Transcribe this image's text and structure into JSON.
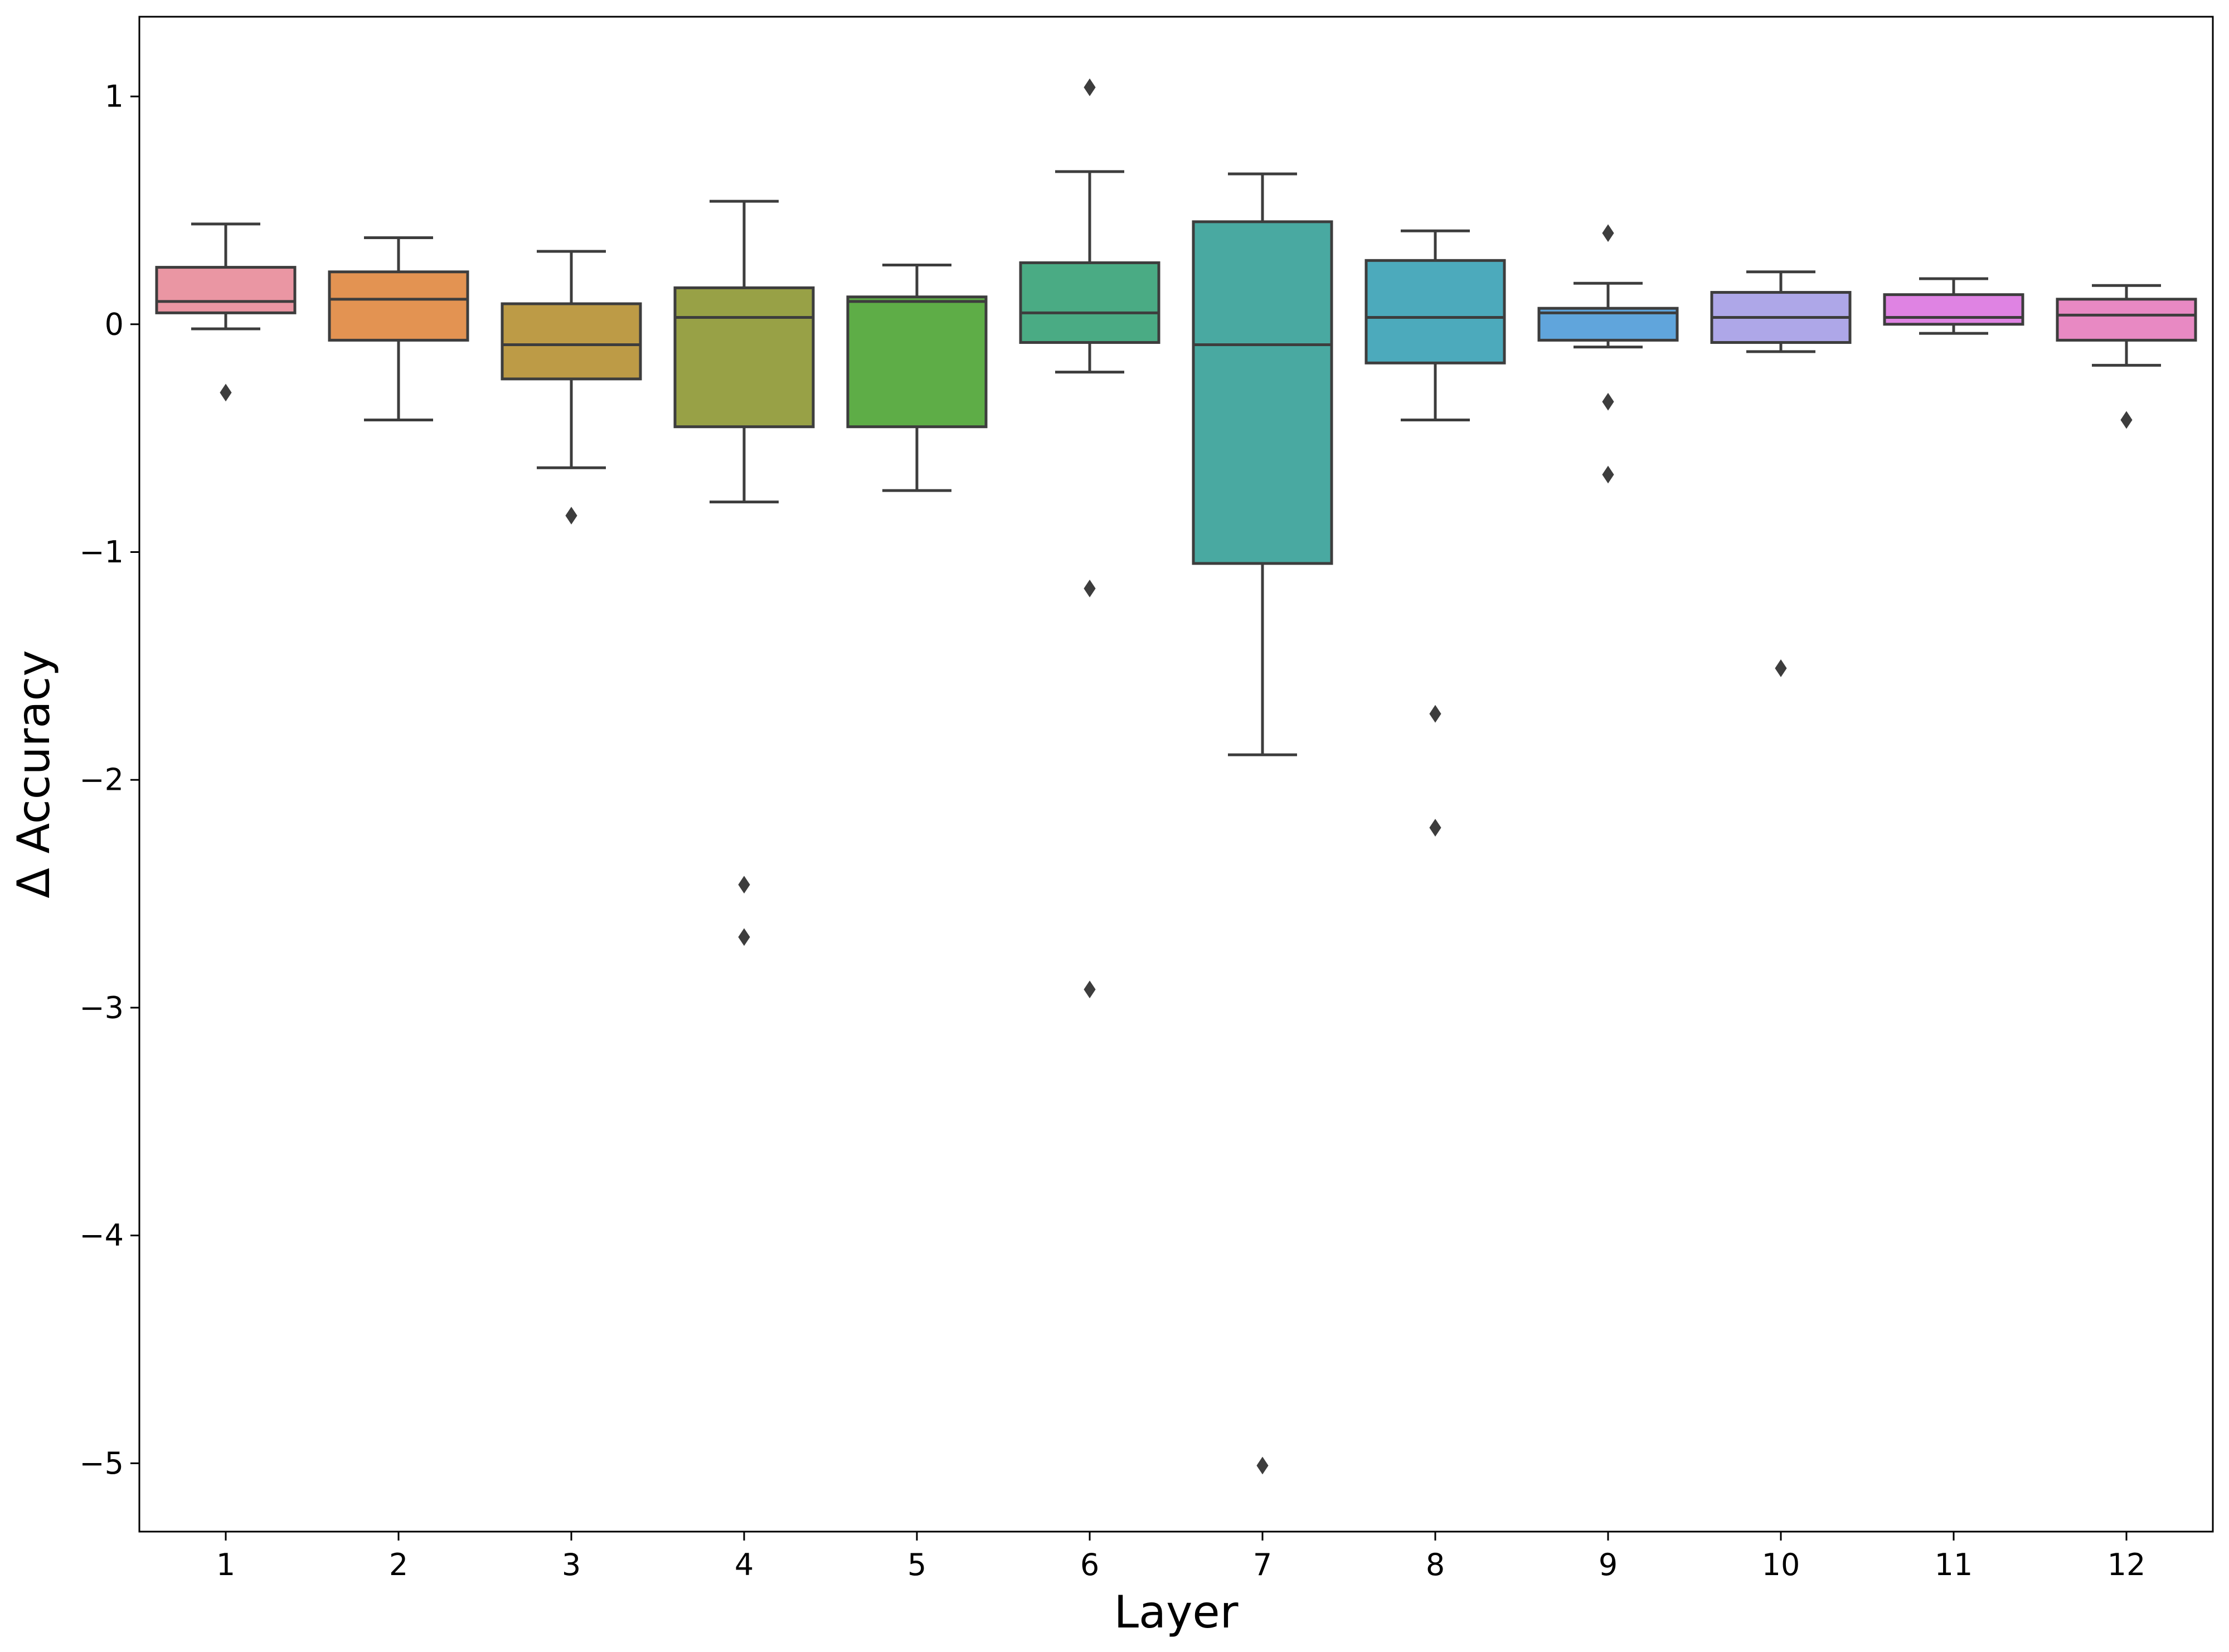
{
  "chart_data": {
    "type": "box",
    "title": "",
    "xlabel": "Layer",
    "ylabel": "Δ Accuracy",
    "ylim": [
      -5.3,
      1.35
    ],
    "yticks": [
      1,
      0,
      -1,
      -2,
      -3,
      -4,
      -5
    ],
    "ytick_labels": [
      "1",
      "0",
      "−1",
      "−2",
      "−3",
      "−4",
      "−5"
    ],
    "grid": false,
    "legend": "none",
    "categories": [
      "1",
      "2",
      "3",
      "4",
      "5",
      "6",
      "7",
      "8",
      "9",
      "10",
      "11",
      "12"
    ],
    "boxes": [
      {
        "label": "1",
        "color": "#ea96a3",
        "whisker_low": -0.02,
        "q1": 0.05,
        "median": 0.1,
        "q3": 0.25,
        "whisker_high": 0.44,
        "outliers": [
          -0.3
        ]
      },
      {
        "label": "2",
        "color": "#e39352",
        "whisker_low": -0.42,
        "q1": -0.07,
        "median": 0.11,
        "q3": 0.23,
        "whisker_high": 0.38,
        "outliers": []
      },
      {
        "label": "3",
        "color": "#bd9b46",
        "whisker_low": -0.63,
        "q1": -0.24,
        "median": -0.09,
        "q3": 0.09,
        "whisker_high": 0.32,
        "outliers": [
          -0.84
        ]
      },
      {
        "label": "4",
        "color": "#98a146",
        "whisker_low": -0.78,
        "q1": -0.45,
        "median": 0.03,
        "q3": 0.16,
        "whisker_high": 0.54,
        "outliers": [
          -2.46,
          -2.69
        ]
      },
      {
        "label": "5",
        "color": "#5ead47",
        "whisker_low": -0.73,
        "q1": -0.45,
        "median": 0.1,
        "q3": 0.12,
        "whisker_high": 0.26,
        "outliers": []
      },
      {
        "label": "6",
        "color": "#4aab84",
        "whisker_low": -0.21,
        "q1": -0.08,
        "median": 0.05,
        "q3": 0.27,
        "whisker_high": 0.67,
        "outliers": [
          1.04,
          -1.16,
          -2.92
        ]
      },
      {
        "label": "7",
        "color": "#49a9a1",
        "whisker_low": -1.89,
        "q1": -1.05,
        "median": -0.09,
        "q3": 0.45,
        "whisker_high": 0.66,
        "outliers": [
          -5.01
        ]
      },
      {
        "label": "8",
        "color": "#4caabc",
        "whisker_low": -0.42,
        "q1": -0.17,
        "median": 0.03,
        "q3": 0.28,
        "whisker_high": 0.41,
        "outliers": [
          -1.71,
          -2.21
        ]
      },
      {
        "label": "9",
        "color": "#60a5dc",
        "whisker_low": -0.1,
        "q1": -0.07,
        "median": 0.05,
        "q3": 0.07,
        "whisker_high": 0.18,
        "outliers": [
          0.4,
          -0.34,
          -0.66
        ]
      },
      {
        "label": "10",
        "color": "#aea7e8",
        "whisker_low": -0.12,
        "q1": -0.08,
        "median": 0.03,
        "q3": 0.14,
        "whisker_high": 0.23,
        "outliers": [
          -1.51
        ]
      },
      {
        "label": "11",
        "color": "#df83e3",
        "whisker_low": -0.04,
        "q1": 0.0,
        "median": 0.03,
        "q3": 0.13,
        "whisker_high": 0.2,
        "outliers": []
      },
      {
        "label": "12",
        "color": "#e889c3",
        "whisker_low": -0.18,
        "q1": -0.07,
        "median": 0.04,
        "q3": 0.11,
        "whisker_high": 0.17,
        "outliers": [
          -0.42
        ]
      }
    ],
    "line_color": "#3d3d3d"
  }
}
